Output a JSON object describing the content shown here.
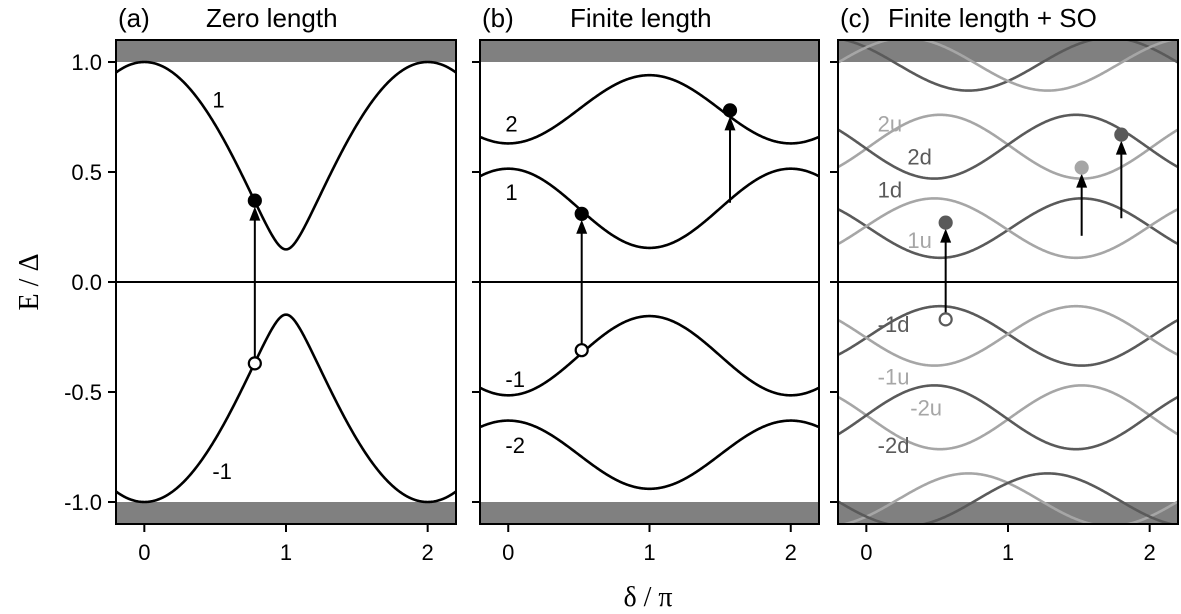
{
  "colors": {
    "black": "#000000",
    "dark": "#5a5a5a",
    "light": "#a6a6a6",
    "gap": "#808080"
  },
  "shared_axes": {
    "ylabel": "E / Δ",
    "xlabel": "δ / π"
  },
  "chart_data": [
    {
      "type": "line",
      "panel_label": "(a)",
      "title": "Zero length",
      "xlim": [
        -0.2,
        2.2
      ],
      "ylim": [
        -1.05,
        1.05
      ],
      "xticks": [
        "0",
        "1",
        "2"
      ],
      "yticks": [
        "-1.0",
        "-0.5",
        "0.0",
        "0.5",
        "1.0"
      ],
      "gap_band_edges": [
        -1.0,
        1.0
      ],
      "zero_line": 0.0,
      "series": [
        {
          "name": "1",
          "label": "1",
          "color": "#000000",
          "model": "andreev",
          "tau": 0.978,
          "sign": 1,
          "label_at": [
            0.48,
            0.83
          ]
        },
        {
          "name": "-1",
          "label": "-1",
          "color": "#000000",
          "model": "andreev",
          "tau": 0.978,
          "sign": -1,
          "label_at": [
            0.48,
            -0.86
          ]
        }
      ],
      "points": [
        {
          "x": 0.78,
          "y": 0.37,
          "filled": true,
          "color": "#000000"
        },
        {
          "x": 0.78,
          "y": -0.37,
          "filled": false,
          "color": "#000000"
        }
      ],
      "arrows": [
        {
          "x": 0.78,
          "y0": -0.37,
          "y1": 0.37
        }
      ]
    },
    {
      "type": "line",
      "panel_label": "(b)",
      "title": "Finite length",
      "xlim": [
        -0.2,
        2.2
      ],
      "ylim": [
        -1.05,
        1.05
      ],
      "xticks": [
        "0",
        "1",
        "2"
      ],
      "yticks": [
        "-1.0",
        "-0.5",
        "0.0",
        "0.5",
        "1.0"
      ],
      "gap_band_edges": [
        -1.0,
        1.0
      ],
      "zero_line": 0.0,
      "series": [
        {
          "name": "2",
          "label": "2",
          "color": "#000000",
          "model": "cos",
          "mid": 0.785,
          "amp": -0.155,
          "shift": 0,
          "label_at": [
            -0.02,
            0.72
          ]
        },
        {
          "name": "1",
          "label": "1",
          "color": "#000000",
          "model": "cos",
          "mid": 0.335,
          "amp": 0.18,
          "shift": 0,
          "label_at": [
            -0.02,
            0.41
          ]
        },
        {
          "name": "-1",
          "label": "-1",
          "color": "#000000",
          "model": "cos",
          "mid": -0.335,
          "amp": -0.18,
          "shift": 0,
          "label_at": [
            -0.02,
            -0.44
          ]
        },
        {
          "name": "-2",
          "label": "-2",
          "color": "#000000",
          "model": "cos",
          "mid": -0.785,
          "amp": 0.155,
          "shift": 0,
          "label_at": [
            -0.02,
            -0.74
          ]
        }
      ],
      "points": [
        {
          "x": 0.52,
          "y": 0.31,
          "filled": true,
          "color": "#000000"
        },
        {
          "x": 0.52,
          "y": -0.31,
          "filled": false,
          "color": "#000000"
        },
        {
          "x": 1.57,
          "y": 0.78,
          "filled": true,
          "color": "#000000"
        }
      ],
      "arrows": [
        {
          "x": 0.52,
          "y0": -0.31,
          "y1": 0.31
        },
        {
          "x": 1.57,
          "y0": 0.36,
          "y1": 0.78
        }
      ]
    },
    {
      "type": "line",
      "panel_label": "(c)",
      "title": "Finite length + SO",
      "xlim": [
        -0.2,
        2.2
      ],
      "ylim": [
        -1.05,
        1.05
      ],
      "xticks": [
        "0",
        "1",
        "2"
      ],
      "yticks": [
        "-1.0",
        "-0.5",
        "0.0",
        "0.5",
        "1.0"
      ],
      "gap_band_edges": [
        -1.0,
        1.0
      ],
      "zero_line": 0.0,
      "series": [
        {
          "name": "3d",
          "label": "",
          "color": "#5a5a5a",
          "model": "cos",
          "mid": 0.99,
          "amp": -0.12,
          "shift": 0.72,
          "label_at": null
        },
        {
          "name": "3u",
          "label": "",
          "color": "#a6a6a6",
          "model": "cos",
          "mid": 0.99,
          "amp": -0.12,
          "shift": -0.72,
          "label_at": null
        },
        {
          "name": "2u",
          "label": "2u",
          "color": "#a6a6a6",
          "model": "cos",
          "mid": 0.615,
          "amp": -0.145,
          "shift": -0.48,
          "label_at": [
            0.08,
            0.72
          ]
        },
        {
          "name": "2d",
          "label": "2d",
          "color": "#5a5a5a",
          "model": "cos",
          "mid": 0.615,
          "amp": -0.145,
          "shift": 0.48,
          "label_at": [
            0.29,
            0.57
          ]
        },
        {
          "name": "1d",
          "label": "1d",
          "color": "#5a5a5a",
          "model": "cos",
          "mid": 0.245,
          "amp": 0.135,
          "shift": -0.48,
          "label_at": [
            0.08,
            0.42
          ]
        },
        {
          "name": "1u",
          "label": "1u",
          "color": "#a6a6a6",
          "model": "cos",
          "mid": 0.245,
          "amp": 0.135,
          "shift": 0.48,
          "label_at": [
            0.29,
            0.19
          ]
        },
        {
          "name": "-1d",
          "label": "-1d",
          "color": "#5a5a5a",
          "model": "cos",
          "mid": -0.245,
          "amp": -0.135,
          "shift": -0.48,
          "label_at": [
            0.08,
            -0.19
          ]
        },
        {
          "name": "-1u",
          "label": "-1u",
          "color": "#a6a6a6",
          "model": "cos",
          "mid": -0.245,
          "amp": -0.135,
          "shift": 0.48,
          "label_at": [
            0.08,
            -0.43
          ]
        },
        {
          "name": "-2u",
          "label": "-2u",
          "color": "#a6a6a6",
          "model": "cos",
          "mid": -0.615,
          "amp": 0.145,
          "shift": -0.48,
          "label_at": [
            0.31,
            -0.57
          ]
        },
        {
          "name": "-2d",
          "label": "-2d",
          "color": "#5a5a5a",
          "model": "cos",
          "mid": -0.615,
          "amp": 0.145,
          "shift": 0.48,
          "label_at": [
            0.08,
            -0.74
          ]
        },
        {
          "name": "-3u",
          "label": "",
          "color": "#a6a6a6",
          "model": "cos",
          "mid": -0.99,
          "amp": 0.12,
          "shift": 0.72,
          "label_at": null
        },
        {
          "name": "-3d",
          "label": "",
          "color": "#5a5a5a",
          "model": "cos",
          "mid": -0.99,
          "amp": 0.12,
          "shift": -0.72,
          "label_at": null
        }
      ],
      "points": [
        {
          "x": 0.56,
          "y": 0.27,
          "filled": true,
          "color": "#5a5a5a"
        },
        {
          "x": 0.56,
          "y": -0.17,
          "filled": false,
          "color": "#5a5a5a"
        },
        {
          "x": 1.52,
          "y": 0.52,
          "filled": true,
          "color": "#a6a6a6"
        },
        {
          "x": 1.8,
          "y": 0.67,
          "filled": true,
          "color": "#5a5a5a"
        }
      ],
      "arrows": [
        {
          "x": 0.56,
          "y0": -0.17,
          "y1": 0.27
        },
        {
          "x": 1.52,
          "y0": 0.21,
          "y1": 0.52
        },
        {
          "x": 1.8,
          "y0": 0.29,
          "y1": 0.67
        }
      ]
    }
  ]
}
